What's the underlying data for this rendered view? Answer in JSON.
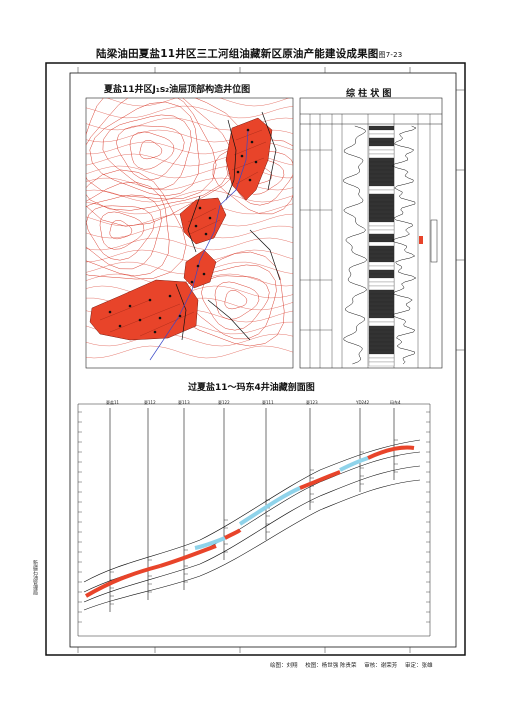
{
  "page": {
    "title": "陆梁油田夏盐11井区三工河组油藏新区原油产能建设成果图",
    "figure_no": "图7-23",
    "side_label": "新疆石油管理局"
  },
  "map_panel": {
    "title": "夏盐11井区J₁s₂油层顶部构造井位图"
  },
  "column_panel": {
    "title": "综 柱 状 图"
  },
  "section_panel": {
    "title": "过夏盐11～玛东4井油藏剖面图",
    "wells": [
      "夏盐11",
      "夏112",
      "夏113",
      "夏122",
      "夏111",
      "夏123",
      "YD242",
      "玛东4"
    ]
  },
  "footer": {
    "items": [
      "绘图：刘翔",
      "校图：杨世强  陈贵荣",
      "审核：谢荣芳",
      "审定：张雄"
    ]
  },
  "colors": {
    "oil": "#e8442a",
    "oil_dark": "#c83018",
    "contour": "#d62a1a",
    "water": "#8fd3ea",
    "well_line": "#3a48c8",
    "frame": "#111111"
  }
}
